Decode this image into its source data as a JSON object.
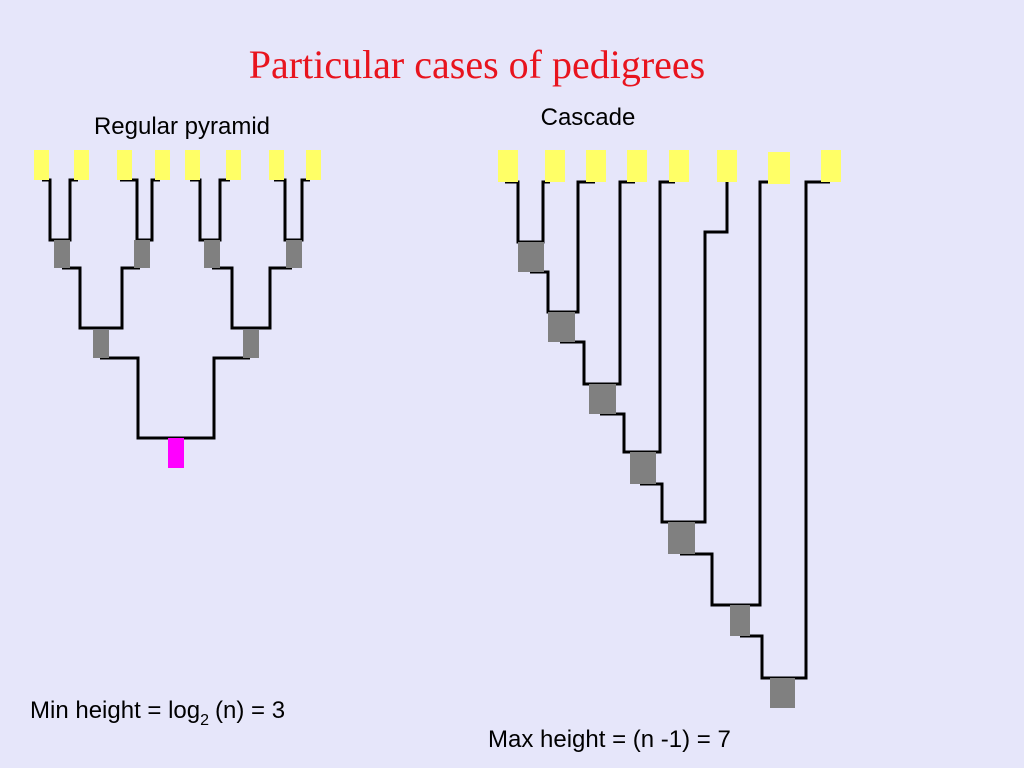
{
  "title": "Particular cases of pedigrees",
  "labels": {
    "pyramid": "Regular pyramid",
    "cascade": "Cascade"
  },
  "formulas": {
    "min": {
      "text": "Min height = log",
      "subscript": "2",
      "rest": "(n) = 3"
    },
    "max": "Max height = (n -1) = 7"
  }
}
